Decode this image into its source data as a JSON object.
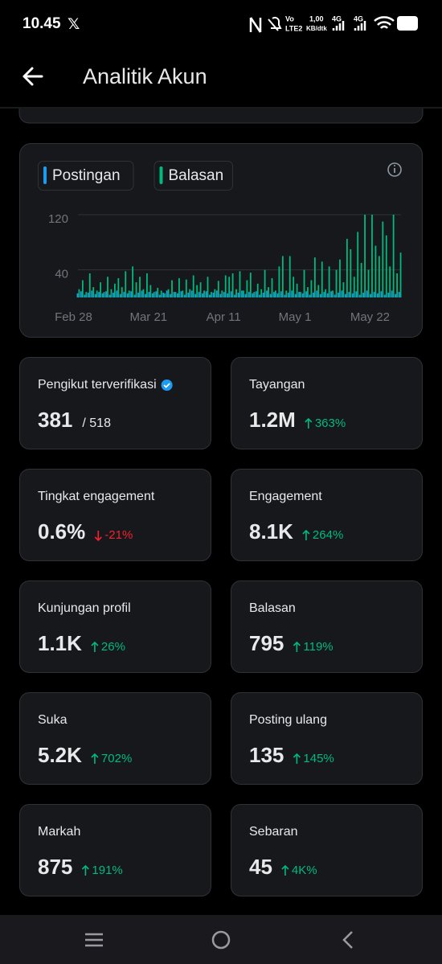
{
  "status_bar": {
    "time": "10.45",
    "volte": "Vo",
    "lte": "LTE2",
    "speed": "1,00",
    "speed_unit": "KB/dtk",
    "net1": "4G",
    "net2": "4G"
  },
  "header": {
    "title": "Analitik Akun"
  },
  "chart_data": {
    "type": "bar",
    "x": [
      0,
      1,
      2,
      3,
      4,
      5,
      6,
      7,
      8,
      9,
      10,
      11,
      12,
      13,
      14,
      15,
      16,
      17,
      18,
      19,
      20,
      21,
      22,
      23,
      24,
      25,
      26,
      27,
      28,
      29,
      30,
      31,
      32,
      33,
      34,
      35,
      36,
      37,
      38,
      39,
      40,
      41,
      42,
      43,
      44,
      45,
      46,
      47,
      48,
      49,
      50,
      51,
      52,
      53,
      54,
      55,
      56,
      57,
      58,
      59,
      60,
      61,
      62,
      63,
      64,
      65,
      66,
      67,
      68,
      69,
      70,
      71,
      72,
      73,
      74,
      75,
      76,
      77,
      78,
      79,
      80,
      81,
      82,
      83,
      84,
      85,
      86,
      87,
      88,
      89,
      90
    ],
    "xlim": [
      -1,
      91
    ],
    "xticks": [
      {
        "value": 0,
        "label": "Feb 28"
      },
      {
        "value": 21,
        "label": "Mar 21"
      },
      {
        "value": 42,
        "label": "Apr 11"
      },
      {
        "value": 62,
        "label": "May 1"
      },
      {
        "value": 83,
        "label": "May 22"
      }
    ],
    "ylim": [
      0,
      120
    ],
    "yticks": [
      40,
      120
    ],
    "grid": true,
    "series": [
      {
        "name": "Postingan",
        "color": "#1d9bf0",
        "values": [
          6,
          9,
          4,
          7,
          10,
          5,
          8,
          6,
          9,
          4,
          7,
          10,
          5,
          8,
          6,
          9,
          4,
          7,
          10,
          5,
          8,
          6,
          9,
          4,
          7,
          10,
          5,
          8,
          6,
          9,
          4,
          7,
          10,
          5,
          8,
          6,
          9,
          4,
          7,
          10,
          5,
          8,
          6,
          9,
          4,
          7,
          10,
          5,
          8,
          6,
          9,
          4,
          7,
          10,
          5,
          8,
          6,
          9,
          4,
          7,
          10,
          5,
          8,
          6,
          9,
          4,
          7,
          10,
          5,
          8,
          6,
          9,
          4,
          7,
          10,
          5,
          8,
          6,
          9,
          4,
          7,
          10,
          5,
          8,
          6,
          9,
          4,
          7,
          10,
          5,
          8
        ]
      },
      {
        "name": "Balasan",
        "color": "#00ba7c",
        "values": [
          12,
          25,
          8,
          35,
          15,
          10,
          22,
          8,
          30,
          12,
          20,
          28,
          15,
          38,
          10,
          45,
          22,
          30,
          12,
          35,
          18,
          8,
          14,
          10,
          6,
          12,
          25,
          8,
          28,
          10,
          26,
          12,
          32,
          18,
          22,
          10,
          30,
          8,
          12,
          24,
          10,
          32,
          30,
          35,
          12,
          38,
          10,
          25,
          36,
          8,
          20,
          12,
          40,
          15,
          28,
          10,
          45,
          60,
          10,
          60,
          30,
          20,
          8,
          40,
          15,
          25,
          58,
          18,
          52,
          12,
          45,
          10,
          40,
          55,
          22,
          85,
          70,
          30,
          95,
          50,
          120,
          40,
          120,
          75,
          60,
          110,
          90,
          45,
          120,
          35,
          65
        ]
      }
    ]
  },
  "stats": [
    {
      "label": "Pengikut terverifikasi",
      "value": "381",
      "secondary": "/ 518"
    },
    {
      "label": "Tayangan",
      "value": "1.2M",
      "change": "363%",
      "direction": "up"
    },
    {
      "label": "Tingkat engagement",
      "value": "0.6%",
      "change": "-21%",
      "direction": "down"
    },
    {
      "label": "Engagement",
      "value": "8.1K",
      "change": "264%",
      "direction": "up"
    },
    {
      "label": "Kunjungan profil",
      "value": "1.1K",
      "change": "26%",
      "direction": "up"
    },
    {
      "label": "Balasan",
      "value": "795",
      "change": "119%",
      "direction": "up"
    },
    {
      "label": "Suka",
      "value": "5.2K",
      "change": "702%",
      "direction": "up"
    },
    {
      "label": "Posting ulang",
      "value": "135",
      "change": "145%",
      "direction": "up"
    },
    {
      "label": "Markah",
      "value": "875",
      "change": "191%",
      "direction": "up"
    },
    {
      "label": "Sebaran",
      "value": "45",
      "change": "4K%",
      "direction": "up"
    }
  ]
}
